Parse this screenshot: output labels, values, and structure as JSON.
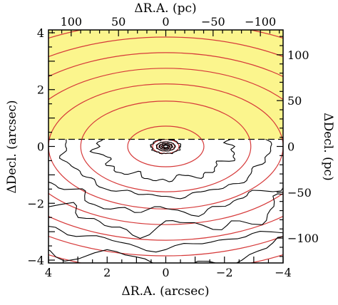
{
  "chart_data": {
    "type": "contour",
    "xlabel_bottom": "ΔR.A. (arcsec)",
    "xlabel_top": "ΔR.A. (pc)",
    "ylabel_left": "ΔDecl. (arcsec)",
    "ylabel_right": "ΔDecl. (pc)",
    "xlim": [
      4,
      -4
    ],
    "ylim": [
      -4.1,
      4.1
    ],
    "bottom_ticks": [
      4,
      2,
      0,
      -2,
      -4
    ],
    "bottom_tick_labels": [
      "4",
      "2",
      "0",
      "−2",
      "−4"
    ],
    "left_ticks": [
      4,
      2,
      0,
      -2,
      -4
    ],
    "left_tick_labels": [
      "4",
      "2",
      "0",
      "−2",
      "−4"
    ],
    "top_ticks_pc": [
      100,
      50,
      0,
      -50,
      -100
    ],
    "top_tick_labels": [
      "100",
      "50",
      "0",
      "−50",
      "−100"
    ],
    "right_ticks_pc": [
      100,
      50,
      0,
      -50,
      -100
    ],
    "right_tick_labels": [
      "100",
      "50",
      "0",
      "−50",
      "−100"
    ],
    "pc_per_arcsec": 31,
    "masked_region": {
      "y_from": 0.25,
      "y_to": 4.1,
      "color": "#fbf58d"
    },
    "model_contours": {
      "color": "#d63a3a",
      "center": [
        0,
        0
      ],
      "axis_ratio": 0.55,
      "semi_major_axes": [
        0.12,
        0.2,
        0.3,
        0.45,
        1.3,
        2.9,
        4.0,
        5.0,
        6.0,
        7.0,
        8.0,
        9.0
      ]
    },
    "data_contours": {
      "color": "#000000",
      "center": [
        0,
        0
      ],
      "axis_ratio": 0.5,
      "semi_major_axes": [
        0.08,
        0.14,
        0.22,
        0.32,
        0.5,
        2.3,
        3.5,
        4.6,
        5.8,
        7.0,
        8.2
      ]
    }
  }
}
